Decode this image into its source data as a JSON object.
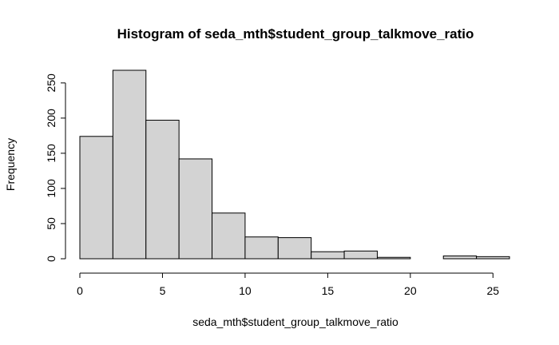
{
  "chart_data": {
    "type": "bar",
    "title": "Histogram of seda_mth$student_group_talkmove_ratio",
    "xlabel": "seda_mth$student_group_talkmove_ratio",
    "ylabel": "Frequency",
    "bin_edges": [
      0,
      2,
      4,
      6,
      8,
      10,
      12,
      14,
      16,
      18,
      20,
      22,
      24,
      26
    ],
    "values": [
      174,
      268,
      197,
      142,
      65,
      31,
      30,
      10,
      11,
      2,
      0,
      4,
      3
    ],
    "xlim": [
      0,
      26
    ],
    "ylim": [
      0,
      268
    ],
    "x_ticks": [
      0,
      5,
      10,
      15,
      20,
      25
    ],
    "y_ticks": [
      0,
      50,
      100,
      150,
      200,
      250
    ],
    "grid": false,
    "bar_fill": "#d3d3d3",
    "bar_stroke": "#000000"
  }
}
